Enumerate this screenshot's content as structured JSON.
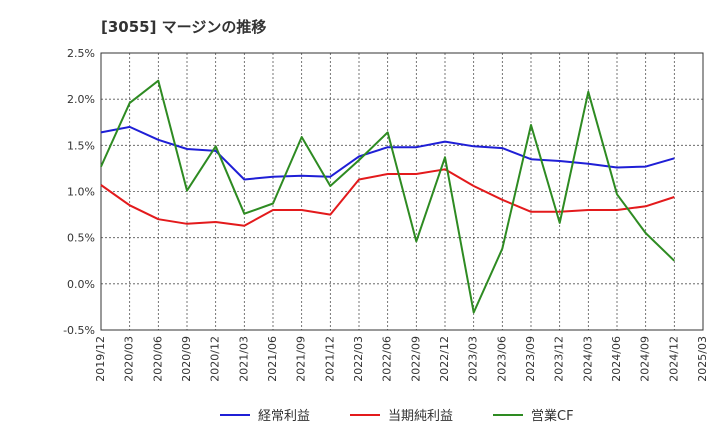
{
  "chart_data": {
    "type": "line",
    "title": "[3055]  マージンの推移",
    "x": [
      "2019/12",
      "2020/03",
      "2020/06",
      "2020/09",
      "2020/12",
      "2021/03",
      "2021/06",
      "2021/09",
      "2021/12",
      "2022/03",
      "2022/06",
      "2022/09",
      "2022/12",
      "2023/03",
      "2023/06",
      "2023/09",
      "2023/12",
      "2024/03",
      "2024/06",
      "2024/09",
      "2024/12",
      "2025/03"
    ],
    "y_ticks": [
      "2.5%",
      "2.0%",
      "1.5%",
      "1.0%",
      "0.5%",
      "0.0%",
      "-0.5%"
    ],
    "ylim": [
      -0.5,
      2.5
    ],
    "y_unit": "%",
    "grid": true,
    "legend_position": "bottom",
    "series": [
      {
        "name": "経常利益",
        "color": "#1f1fd6",
        "values": [
          1.64,
          1.7,
          1.56,
          1.46,
          1.44,
          1.13,
          1.16,
          1.17,
          1.16,
          1.38,
          1.48,
          1.48,
          1.54,
          1.49,
          1.47,
          1.35,
          1.33,
          1.3,
          1.26,
          1.27,
          1.36,
          null
        ]
      },
      {
        "name": "当期純利益",
        "color": "#e31a1c",
        "values": [
          1.07,
          0.85,
          0.7,
          0.65,
          0.67,
          0.63,
          0.8,
          0.8,
          0.75,
          1.13,
          1.19,
          1.19,
          1.24,
          1.06,
          0.91,
          0.78,
          0.78,
          0.8,
          0.8,
          0.84,
          0.94,
          null
        ]
      },
      {
        "name": "営業CF",
        "color": "#2e8b22",
        "values": [
          1.27,
          1.96,
          2.2,
          1.01,
          1.49,
          0.76,
          0.87,
          1.59,
          1.06,
          1.34,
          1.64,
          0.46,
          1.37,
          -0.31,
          0.38,
          1.72,
          0.66,
          2.08,
          0.97,
          0.55,
          0.25,
          null
        ]
      }
    ]
  }
}
